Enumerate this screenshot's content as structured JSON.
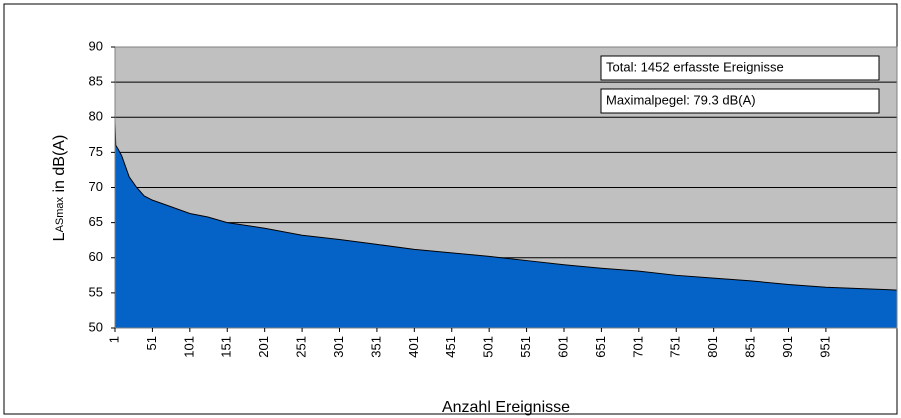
{
  "chart_data": {
    "type": "area",
    "ylabel": "L",
    "ylabel_sub": "ASmax",
    "ylabel_suffix": " in dB(A)",
    "xlabel": "Anzahl Ereignisse",
    "annotations": [
      "Total: 1452 erfasste Ereignisse",
      "Maximalpegel: 79.3 dB(A)"
    ],
    "x": [
      1,
      2,
      5,
      10,
      15,
      20,
      30,
      40,
      51,
      75,
      101,
      125,
      151,
      201,
      251,
      301,
      351,
      401,
      451,
      501,
      551,
      601,
      651,
      701,
      751,
      801,
      851,
      901,
      951,
      1046
    ],
    "values": [
      79.3,
      76,
      75.5,
      74.5,
      73,
      71.5,
      70,
      68.8,
      68.2,
      67.3,
      66.3,
      65.8,
      65,
      64.2,
      63.2,
      62.6,
      61.9,
      61.2,
      60.7,
      60.2,
      59.6,
      59.0,
      58.5,
      58.1,
      57.5,
      57.1,
      56.7,
      56.2,
      55.8,
      55.4
    ],
    "color": "#0563c8",
    "background": "#c0c0c0",
    "xlim": [
      1,
      1046
    ],
    "xticks": [
      1,
      51,
      101,
      151,
      201,
      251,
      301,
      351,
      401,
      451,
      501,
      551,
      601,
      651,
      701,
      751,
      801,
      851,
      901,
      951
    ],
    "ylim": [
      50,
      90
    ],
    "yticks": [
      50,
      55,
      60,
      65,
      70,
      75,
      80,
      85,
      90
    ],
    "grid": true
  }
}
